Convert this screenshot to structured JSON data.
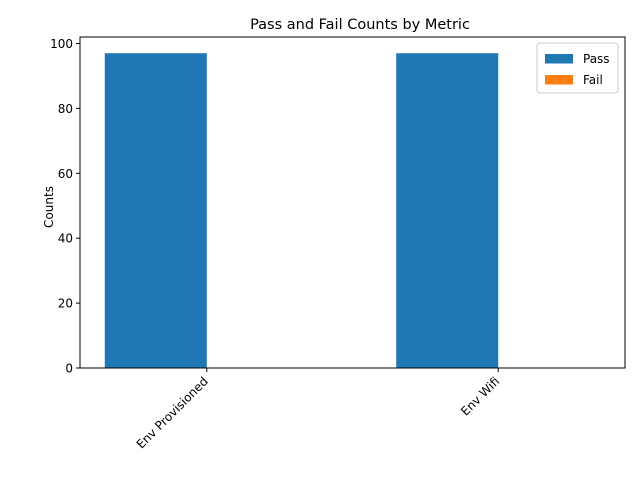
{
  "chart_data": {
    "type": "bar",
    "title": "Pass and Fail Counts by Metric",
    "xlabel": "",
    "ylabel": "Counts",
    "categories": [
      "Env Provisioned",
      "Env Wifi"
    ],
    "series": [
      {
        "name": "Pass",
        "color": "#1f77b4",
        "values": [
          97,
          97
        ]
      },
      {
        "name": "Fail",
        "color": "#ff7f0e",
        "values": [
          0,
          0
        ]
      }
    ],
    "ylim": [
      0,
      102
    ],
    "yticks": [
      0,
      20,
      40,
      60,
      80,
      100
    ],
    "grid": false,
    "legend_position": "top-right"
  }
}
